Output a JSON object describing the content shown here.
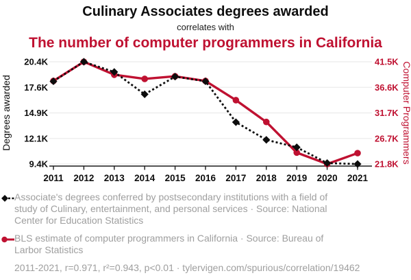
{
  "header": {
    "title": "Culinary Associates degrees awarded",
    "subtitle": "correlates with",
    "title2": "The number of computer programmers in California"
  },
  "colors": {
    "accent_red": "#bf1131",
    "series_black": "#0d0d0d",
    "grid": "#ebebeb",
    "axis_line": "#1a1a1a",
    "legend_text": "#9e9e9e"
  },
  "chart_data": {
    "type": "line",
    "x": [
      "2011",
      "2012",
      "2013",
      "2014",
      "2015",
      "2016",
      "2017",
      "2018",
      "2019",
      "2020",
      "2021"
    ],
    "series": [
      {
        "name": "Associate's degrees conferred in Culinary, entertainment, and personal services",
        "axis": "left",
        "style": "dotted",
        "marker": "diamond",
        "units": "thousands",
        "values": [
          18.3,
          20.4,
          19.3,
          16.9,
          18.8,
          18.3,
          13.9,
          12.0,
          11.2,
          9.5,
          9.4
        ]
      },
      {
        "name": "BLS estimate of computer programmers in California",
        "axis": "right",
        "style": "solid",
        "marker": "circle",
        "units": "thousands",
        "values": [
          37.8,
          41.5,
          39.0,
          38.2,
          38.7,
          37.8,
          34.1,
          29.9,
          24.0,
          21.8,
          23.9
        ]
      }
    ],
    "left_axis": {
      "label": "Degrees awarded",
      "ticks": [
        "20.4K",
        "17.6K",
        "14.9K",
        "12.1K",
        "9.4K"
      ],
      "range": [
        9.4,
        20.4
      ]
    },
    "right_axis": {
      "label": "Computer Programmers",
      "ticks": [
        "41.5K",
        "36.6K",
        "31.7K",
        "26.7K",
        "21.8K"
      ],
      "range": [
        21.8,
        41.5
      ]
    },
    "grid": true,
    "legend_position": "bottom"
  },
  "legend": [
    {
      "marker": "black-diamond-dotted",
      "text": "Associate's degrees conferred by postsecondary institutions with a field of\nstudy of Culinary, entertainment, and personal services · Source: National\nCenter for Education Statistics"
    },
    {
      "marker": "red-circle-solid",
      "text": "BLS estimate of computer programmers in California · Source: Bureau of\nLarbor Statistics"
    }
  ],
  "footer": {
    "text": "2011-2021, r=0.971, r²=0.943, p<0.01 · tylervigen.com/spurious/correlation/19462"
  }
}
